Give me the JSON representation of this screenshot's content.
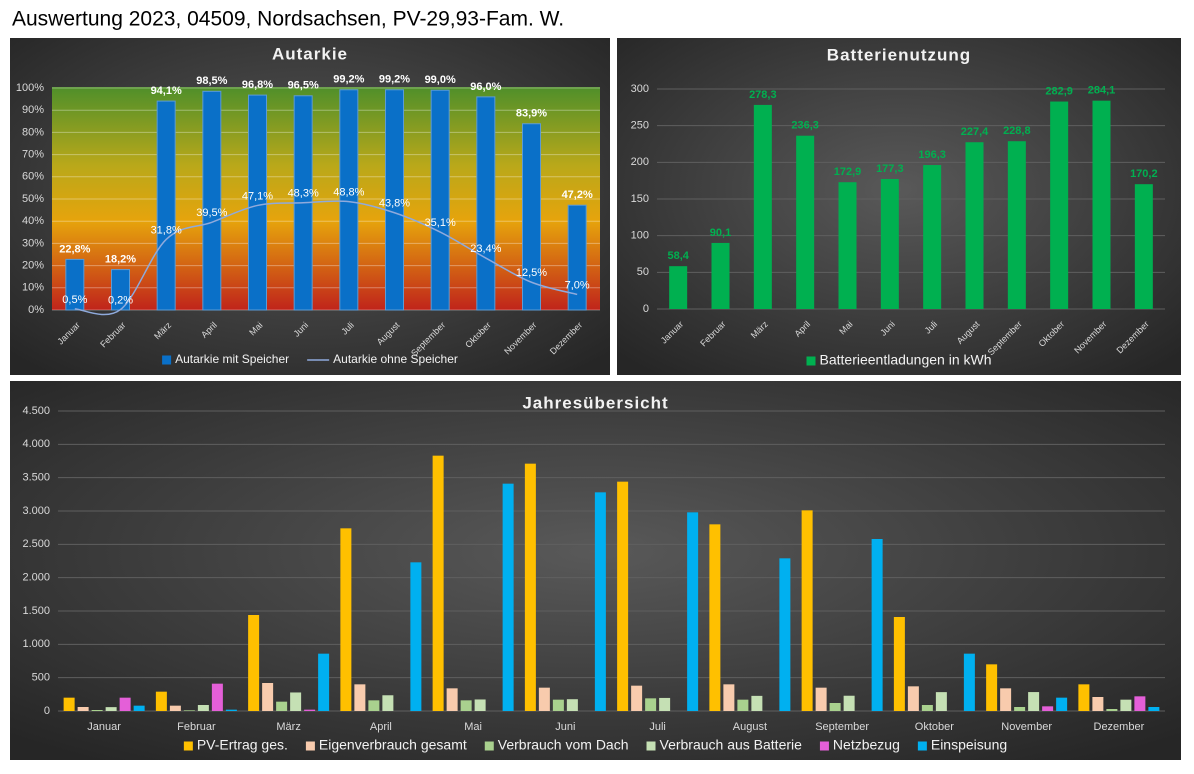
{
  "header": {
    "title": "Auswertung 2023, 04509, Nordsachsen, PV-29,93-Fam. W."
  },
  "chart_data": [
    {
      "type": "bar",
      "title": "Autarkie",
      "categories": [
        "Januar",
        "Februar",
        "März",
        "April",
        "Mai",
        "Juni",
        "Juli",
        "August",
        "September",
        "Oktober",
        "November",
        "Dezember"
      ],
      "series": [
        {
          "name": "Autarkie mit Speicher",
          "type": "bar",
          "color": "#0a70c8",
          "values": [
            22.8,
            18.2,
            94.1,
            98.5,
            96.8,
            96.5,
            99.2,
            99.2,
            99.0,
            96.0,
            83.9,
            47.2
          ],
          "value_labels": [
            "22,8%",
            "18,2%",
            "94,1%",
            "98,5%",
            "96,8%",
            "96,5%",
            "99,2%",
            "99,2%",
            "99,0%",
            "96,0%",
            "83,9%",
            "47,2%"
          ]
        },
        {
          "name": "Autarkie ohne Speicher",
          "type": "line",
          "color": "#8faadc",
          "values": [
            0.5,
            0.2,
            31.8,
            39.5,
            47.1,
            48.3,
            48.8,
            43.8,
            35.1,
            23.4,
            12.5,
            7.0
          ],
          "value_labels": [
            "0,5%",
            "0,2%",
            "31,8%",
            "39,5%",
            "47,1%",
            "48,3%",
            "48,8%",
            "43,8%",
            "35,1%",
            "23,4%",
            "12,5%",
            "7,0%"
          ]
        }
      ],
      "ylim": [
        0,
        100
      ],
      "yticks": [
        {
          "value": 0,
          "label": "0%"
        },
        {
          "value": 10,
          "label": "10%"
        },
        {
          "value": 20,
          "label": "20%"
        },
        {
          "value": 30,
          "label": "30%"
        },
        {
          "value": 40,
          "label": "40%"
        },
        {
          "value": 50,
          "label": "50%"
        },
        {
          "value": 60,
          "label": "60%"
        },
        {
          "value": 70,
          "label": "70%"
        },
        {
          "value": 80,
          "label": "80%"
        },
        {
          "value": 90,
          "label": "90%"
        },
        {
          "value": 100,
          "label": "100%"
        }
      ],
      "grid": true,
      "legend": "bottom"
    },
    {
      "type": "bar",
      "title": "Batterienutzung",
      "categories": [
        "Januar",
        "Februar",
        "März",
        "April",
        "Mai",
        "Juni",
        "Juli",
        "August",
        "September",
        "Oktober",
        "November",
        "Dezember"
      ],
      "series": [
        {
          "name": "Batterieentladungen in kWh",
          "type": "bar",
          "color": "#00b050",
          "values": [
            58.4,
            90.1,
            278.3,
            236.3,
            172.9,
            177.3,
            196.3,
            227.4,
            228.8,
            282.9,
            284.1,
            170.2
          ],
          "value_labels": [
            "58,4",
            "90,1",
            "278,3",
            "236,3",
            "172,9",
            "177,3",
            "196,3",
            "227,4",
            "228,8",
            "282,9",
            "284,1",
            "170,2"
          ]
        }
      ],
      "ylim": [
        0,
        300
      ],
      "yticks": [
        0,
        50,
        100,
        150,
        200,
        250,
        300
      ],
      "grid": true,
      "legend": "bottom"
    },
    {
      "type": "bar",
      "title": "Jahresübersicht",
      "categories": [
        "Januar",
        "Februar",
        "März",
        "April",
        "Mai",
        "Juni",
        "Juli",
        "August",
        "September",
        "Oktober",
        "November",
        "Dezember"
      ],
      "series": [
        {
          "name": "PV-Ertrag ges.",
          "type": "bar",
          "color": "#ffc000",
          "values": [
            200,
            290,
            1440,
            2740,
            3830,
            3710,
            3440,
            2800,
            3010,
            1410,
            700,
            400
          ]
        },
        {
          "name": "Eigenverbrauch gesamt",
          "type": "bar",
          "color": "#f8cbad",
          "values": [
            60,
            80,
            420,
            400,
            340,
            350,
            380,
            400,
            350,
            370,
            340,
            210
          ]
        },
        {
          "name": "Verbrauch vom Dach",
          "type": "bar",
          "color": "#a9d18e",
          "values": [
            15,
            10,
            140,
            160,
            160,
            170,
            190,
            170,
            120,
            90,
            60,
            30
          ]
        },
        {
          "name": "Verbrauch aus Batterie",
          "type": "bar",
          "color": "#c5e0b4",
          "values": [
            58,
            90,
            278,
            236,
            173,
            177,
            196,
            227,
            229,
            283,
            284,
            170
          ]
        },
        {
          "name": "Netzbezug",
          "type": "bar",
          "color": "#e45fd8",
          "values": [
            200,
            410,
            20,
            0,
            0,
            0,
            0,
            0,
            0,
            0,
            70,
            220
          ]
        },
        {
          "name": "Einspeisung",
          "type": "bar",
          "color": "#00b0f0",
          "values": [
            80,
            20,
            860,
            2230,
            3410,
            3280,
            2980,
            2290,
            2580,
            860,
            200,
            60
          ]
        }
      ],
      "ylim": [
        0,
        4500
      ],
      "yticks": [
        0,
        500,
        {
          "value": 1000,
          "label": "1.000"
        },
        {
          "value": 1500,
          "label": "1.500"
        },
        {
          "value": 2000,
          "label": "2.000"
        },
        {
          "value": 2500,
          "label": "2.500"
        },
        {
          "value": 3000,
          "label": "3.000"
        },
        {
          "value": 3500,
          "label": "3.500"
        },
        {
          "value": 4000,
          "label": "4.000"
        },
        {
          "value": 4500,
          "label": "4.500"
        }
      ],
      "grid": true,
      "legend": "bottom"
    }
  ]
}
